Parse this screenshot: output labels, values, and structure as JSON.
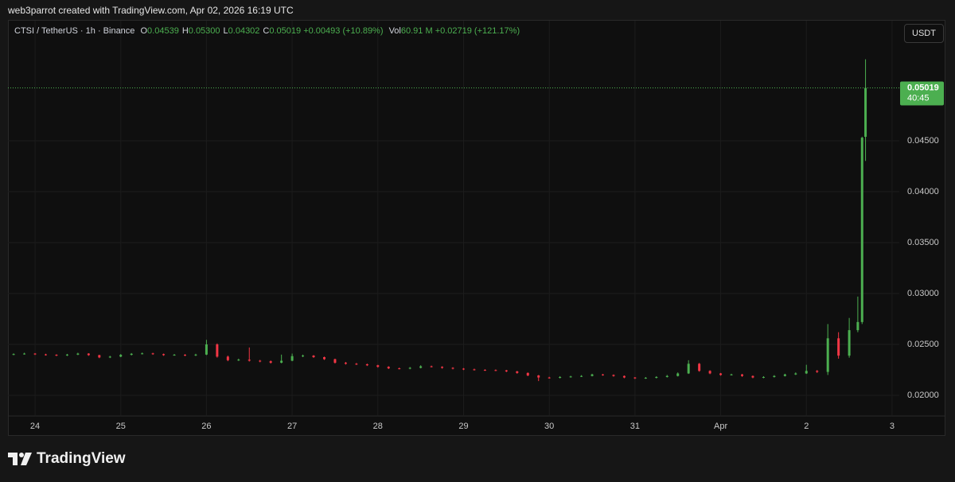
{
  "header": {
    "attribution": "web3parrot created with TradingView.com, Apr 02, 2026 16:19 UTC"
  },
  "legend": {
    "symbol": "CTSI / TetherUS · 1h · Binance",
    "fields": [
      {
        "label": "O",
        "value": "0.04539"
      },
      {
        "label": "H",
        "value": "0.05300"
      },
      {
        "label": "L",
        "value": "0.04302"
      },
      {
        "label": "C",
        "value": "0.05019"
      }
    ],
    "change": "+0.00493 (+10.89%)",
    "volume_label": "Vol",
    "volume": "60.91 M",
    "volume_change": "+0.02719 (+121.17%)"
  },
  "currency_button": "USDT",
  "chart_data": {
    "type": "candlestick",
    "x": [
      23.75,
      23.875,
      24.0,
      24.125,
      24.25,
      24.375,
      24.5,
      24.625,
      24.75,
      24.875,
      25.0,
      25.125,
      25.25,
      25.375,
      25.5,
      25.625,
      25.75,
      25.875,
      26.0,
      26.125,
      26.25,
      26.375,
      26.5,
      26.625,
      26.75,
      26.875,
      27.0,
      27.125,
      27.25,
      27.375,
      27.5,
      27.625,
      27.75,
      27.875,
      28.0,
      28.125,
      28.25,
      28.375,
      28.5,
      28.625,
      28.75,
      28.875,
      29.0,
      29.125,
      29.25,
      29.375,
      29.5,
      29.625,
      29.75,
      29.875,
      30.0,
      30.125,
      30.25,
      30.375,
      30.5,
      30.625,
      30.75,
      30.875,
      31.0,
      31.125,
      31.25,
      31.375,
      31.5,
      31.625,
      31.75,
      31.875,
      32.0,
      32.125,
      32.25,
      32.375,
      32.5,
      32.625,
      32.75,
      32.875,
      33.0,
      33.125,
      33.25,
      33.375,
      33.5,
      33.6,
      33.65,
      33.69
    ],
    "open": [
      0.024,
      0.02405,
      0.0241,
      0.02402,
      0.02398,
      0.02392,
      0.024,
      0.0241,
      0.02395,
      0.02372,
      0.0238,
      0.02398,
      0.02408,
      0.02412,
      0.02405,
      0.02395,
      0.02398,
      0.02392,
      0.024,
      0.025,
      0.0238,
      0.02345,
      0.0235,
      0.0234,
      0.02335,
      0.0232,
      0.0234,
      0.02385,
      0.0239,
      0.02375,
      0.02355,
      0.0232,
      0.0231,
      0.02305,
      0.02295,
      0.0228,
      0.02265,
      0.02262,
      0.0227,
      0.02285,
      0.0228,
      0.0227,
      0.02262,
      0.02255,
      0.0225,
      0.02248,
      0.02245,
      0.02235,
      0.0222,
      0.02195,
      0.02175,
      0.02172,
      0.0218,
      0.02185,
      0.0219,
      0.02205,
      0.022,
      0.0219,
      0.02175,
      0.02168,
      0.02172,
      0.0218,
      0.0219,
      0.02215,
      0.0231,
      0.0224,
      0.02215,
      0.022,
      0.02205,
      0.0219,
      0.02175,
      0.0218,
      0.0219,
      0.02205,
      0.02215,
      0.0224,
      0.0223,
      0.0256,
      0.0239,
      0.0264,
      0.0272,
      0.04539
    ],
    "high": [
      0.02412,
      0.02418,
      0.02415,
      0.02408,
      0.02403,
      0.02407,
      0.02418,
      0.02414,
      0.02398,
      0.02388,
      0.02405,
      0.02415,
      0.0242,
      0.02418,
      0.0241,
      0.02406,
      0.02404,
      0.02408,
      0.02545,
      0.0251,
      0.0239,
      0.0236,
      0.0247,
      0.02348,
      0.02342,
      0.024,
      0.0241,
      0.024,
      0.02395,
      0.0238,
      0.0236,
      0.02328,
      0.02318,
      0.02312,
      0.023,
      0.02286,
      0.02272,
      0.02278,
      0.02295,
      0.02292,
      0.02285,
      0.02276,
      0.02268,
      0.02262,
      0.02256,
      0.02254,
      0.0225,
      0.0224,
      0.02225,
      0.022,
      0.02182,
      0.02188,
      0.02192,
      0.02198,
      0.02212,
      0.0221,
      0.02205,
      0.02195,
      0.0218,
      0.0218,
      0.02188,
      0.022,
      0.02225,
      0.02345,
      0.02318,
      0.02246,
      0.0222,
      0.02212,
      0.0221,
      0.02195,
      0.02188,
      0.02198,
      0.02212,
      0.02225,
      0.023,
      0.02248,
      0.027,
      0.0262,
      0.0276,
      0.0297,
      0.0454,
      0.053
    ],
    "low": [
      0.02395,
      0.024,
      0.02396,
      0.0239,
      0.02385,
      0.02386,
      0.02395,
      0.02388,
      0.02365,
      0.02366,
      0.02375,
      0.02392,
      0.02402,
      0.02398,
      0.02388,
      0.0239,
      0.02385,
      0.02386,
      0.02395,
      0.0237,
      0.02335,
      0.02338,
      0.02332,
      0.02325,
      0.02312,
      0.02315,
      0.02335,
      0.02375,
      0.02368,
      0.02348,
      0.02312,
      0.02302,
      0.02298,
      0.02288,
      0.02272,
      0.02258,
      0.02255,
      0.02256,
      0.02265,
      0.02274,
      0.02262,
      0.02255,
      0.02248,
      0.02244,
      0.0224,
      0.02238,
      0.02228,
      0.02212,
      0.02188,
      0.0214,
      0.02164,
      0.02166,
      0.02174,
      0.0218,
      0.02186,
      0.02193,
      0.02183,
      0.02168,
      0.0216,
      0.02162,
      0.02166,
      0.02175,
      0.02185,
      0.0221,
      0.02232,
      0.02208,
      0.02193,
      0.02195,
      0.02182,
      0.02168,
      0.02168,
      0.02175,
      0.02185,
      0.022,
      0.0221,
      0.0222,
      0.022,
      0.0236,
      0.0237,
      0.0262,
      0.027,
      0.04302
    ],
    "close": [
      0.02405,
      0.0241,
      0.02402,
      0.02398,
      0.02392,
      0.024,
      0.0241,
      0.02395,
      0.02372,
      0.0238,
      0.02398,
      0.02408,
      0.02412,
      0.02405,
      0.02395,
      0.02398,
      0.02392,
      0.024,
      0.025,
      0.0238,
      0.02345,
      0.0235,
      0.0234,
      0.02335,
      0.0232,
      0.0234,
      0.02385,
      0.0239,
      0.02375,
      0.02355,
      0.0232,
      0.0231,
      0.02305,
      0.02295,
      0.0228,
      0.02265,
      0.02262,
      0.0227,
      0.02285,
      0.0228,
      0.0227,
      0.02262,
      0.02255,
      0.0225,
      0.02248,
      0.02245,
      0.02235,
      0.0222,
      0.02195,
      0.02175,
      0.02172,
      0.0218,
      0.02185,
      0.0219,
      0.02205,
      0.022,
      0.0219,
      0.02175,
      0.02168,
      0.02172,
      0.0218,
      0.0219,
      0.02215,
      0.0231,
      0.0224,
      0.02215,
      0.022,
      0.02205,
      0.0219,
      0.02175,
      0.0218,
      0.0219,
      0.02205,
      0.02215,
      0.0224,
      0.0223,
      0.0256,
      0.0239,
      0.0264,
      0.0272,
      0.0453,
      0.05019
    ],
    "xlim": [
      23.684,
      34.084
    ],
    "ylim": [
      0.01805,
      0.05648
    ],
    "xticks": [
      24,
      25,
      26,
      27,
      28,
      29,
      30,
      31,
      {
        "value": 32,
        "label": "Apr"
      },
      {
        "value": 33,
        "label": "2"
      },
      {
        "value": 34,
        "label": "3"
      }
    ],
    "yticks": [
      {
        "value": 0.02,
        "label": "0.02000"
      },
      {
        "value": 0.025,
        "label": "0.02500"
      },
      {
        "value": 0.03,
        "label": "0.03000"
      },
      {
        "value": 0.035,
        "label": "0.03500"
      },
      {
        "value": 0.04,
        "label": "0.04000"
      },
      {
        "value": 0.045,
        "label": "0.04500"
      }
    ],
    "up_color": "#4caf50",
    "down_color": "#f23645",
    "grid": true,
    "last_price": {
      "value": 0.05019,
      "label": "0.05019"
    },
    "countdown": "40:45"
  },
  "footer": {
    "brand": "TradingView"
  }
}
